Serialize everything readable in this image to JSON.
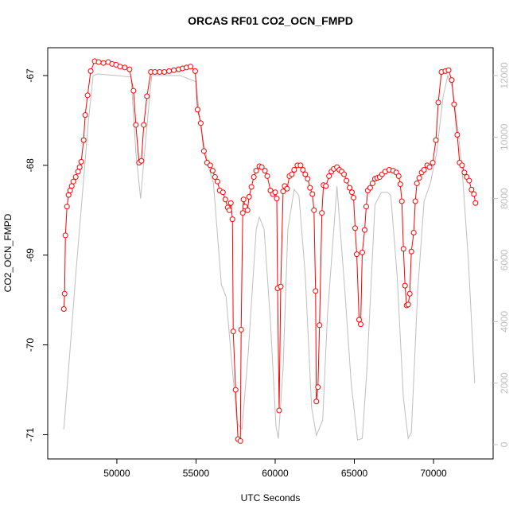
{
  "chart_data": {
    "type": "line",
    "title": "ORCAS RF01 CO2_OCN_FMPD",
    "x_label": "UTC Seconds",
    "y_label": "CO2_OCN_FMPD",
    "xlim": [
      45633,
      73765
    ],
    "ylim": [
      -71.27,
      -66.69
    ],
    "y2lim": [
      -465,
      12904
    ],
    "xticks": [
      50000,
      55000,
      60000,
      65000,
      70000
    ],
    "yticks": [
      -71,
      -70,
      -69,
      -68,
      -67
    ],
    "y2ticks": [
      0,
      2000,
      4000,
      6000,
      8000,
      10000,
      12000
    ],
    "series": [
      {
        "color": "#ff0000",
        "marker": "circle",
        "x": [
          46650,
          46700,
          46750,
          46850,
          46950,
          47050,
          47150,
          47250,
          47400,
          47550,
          47650,
          47750,
          47900,
          48000,
          48150,
          48350,
          48600,
          48850,
          49150,
          49450,
          49700,
          49950,
          50200,
          50500,
          50800,
          51050,
          51200,
          51400,
          51550,
          51700,
          51900,
          52150,
          52400,
          52700,
          53000,
          53300,
          53600,
          53900,
          54150,
          54400,
          54650,
          54950,
          55100,
          55300,
          55500,
          55700,
          55900,
          56050,
          56200,
          56350,
          56500,
          56700,
          56850,
          57000,
          57100,
          57200,
          57300,
          57350,
          57500,
          57650,
          57800,
          57850,
          57950,
          58000,
          58100,
          58250,
          58350,
          58500,
          58650,
          58800,
          59000,
          59150,
          59350,
          59500,
          59700,
          59850,
          60000,
          60100,
          60150,
          60250,
          60350,
          60500,
          60600,
          60750,
          60900,
          61050,
          61200,
          61400,
          61600,
          61750,
          61900,
          62050,
          62200,
          62350,
          62450,
          62550,
          62600,
          62700,
          62800,
          62950,
          63050,
          63200,
          63400,
          63550,
          63700,
          63900,
          64050,
          64200,
          64350,
          64500,
          64700,
          64850,
          64950,
          65050,
          65150,
          65300,
          65400,
          65500,
          65650,
          65750,
          65850,
          66000,
          66150,
          66300,
          66450,
          66600,
          66750,
          66950,
          67200,
          67450,
          67650,
          67800,
          67900,
          68000,
          68100,
          68200,
          68300,
          68400,
          68500,
          68600,
          68750,
          68850,
          68950,
          69100,
          69250,
          69400,
          69600,
          69750,
          69950,
          70150,
          70300,
          70500,
          70750,
          70950,
          71150,
          71300,
          71500,
          71650,
          71800,
          71950,
          72100,
          72250,
          72400,
          72550,
          72650
        ],
        "values": [
          -69.6,
          -69.43,
          -68.78,
          -68.46,
          -68.33,
          -68.28,
          -68.23,
          -68.18,
          -68.13,
          -68.07,
          -68.02,
          -67.96,
          -67.72,
          -67.44,
          -67.22,
          -66.95,
          -66.84,
          -66.85,
          -66.86,
          -66.85,
          -66.87,
          -66.88,
          -66.9,
          -66.91,
          -66.93,
          -67.17,
          -67.55,
          -67.97,
          -67.95,
          -67.55,
          -67.23,
          -66.96,
          -66.96,
          -66.96,
          -66.96,
          -66.95,
          -66.94,
          -66.93,
          -66.92,
          -66.91,
          -66.9,
          -66.95,
          -67.38,
          -67.53,
          -67.84,
          -67.97,
          -68.0,
          -68.06,
          -68.13,
          -68.18,
          -68.28,
          -68.3,
          -68.38,
          -68.47,
          -68.5,
          -68.42,
          -68.6,
          -69.85,
          -70.5,
          -71.05,
          -71.07,
          -69.83,
          -68.53,
          -68.38,
          -68.46,
          -68.5,
          -68.35,
          -68.24,
          -68.13,
          -68.06,
          -68.01,
          -68.02,
          -68.06,
          -68.12,
          -68.28,
          -68.32,
          -68.3,
          -68.37,
          -69.37,
          -70.73,
          -69.35,
          -68.29,
          -68.23,
          -68.26,
          -68.12,
          -68.1,
          -68.05,
          -68.0,
          -68.0,
          -68.05,
          -68.1,
          -68.15,
          -68.25,
          -68.32,
          -68.5,
          -69.4,
          -70.63,
          -70.47,
          -69.78,
          -68.53,
          -68.22,
          -68.23,
          -68.12,
          -68.07,
          -68.04,
          -68.02,
          -68.05,
          -68.07,
          -68.1,
          -68.17,
          -68.25,
          -68.3,
          -68.36,
          -68.7,
          -68.99,
          -69.72,
          -69.77,
          -68.97,
          -68.72,
          -68.46,
          -68.28,
          -68.25,
          -68.2,
          -68.15,
          -68.14,
          -68.13,
          -68.1,
          -68.07,
          -68.05,
          -68.06,
          -68.08,
          -68.12,
          -68.21,
          -68.4,
          -68.93,
          -69.34,
          -69.56,
          -69.55,
          -69.43,
          -68.96,
          -68.75,
          -68.4,
          -68.2,
          -68.14,
          -68.08,
          -68.05,
          -68.0,
          -68.02,
          -67.97,
          -67.72,
          -67.3,
          -66.96,
          -66.95,
          -66.94,
          -67.05,
          -67.32,
          -67.66,
          -67.97,
          -68.0,
          -68.08,
          -68.13,
          -68.17,
          -68.27,
          -68.32,
          -68.42
        ]
      },
      {
        "color": "#bebebe",
        "axis": "y2",
        "x": [
          46650,
          47000,
          47400,
          47800,
          48200,
          48500,
          48800,
          50000,
          50900,
          51200,
          51500,
          51800,
          52200,
          53000,
          54000,
          55000,
          55300,
          55800,
          56100,
          56600,
          56900,
          57200,
          57600,
          57900,
          58300,
          58800,
          59000,
          59300,
          59700,
          60050,
          60200,
          60500,
          60800,
          61200,
          61500,
          61900,
          62300,
          62600,
          63000,
          63300,
          63900,
          64400,
          64800,
          65200,
          65500,
          65800,
          66300,
          66700,
          67100,
          67300,
          67700,
          68100,
          68400,
          68600,
          69000,
          69400,
          69800,
          70200,
          70600,
          70900,
          71200,
          71500,
          71800,
          72200,
          72600
        ],
        "values": [
          500,
          2800,
          5500,
          8000,
          10500,
          12000,
          12050,
          12000,
          11950,
          9500,
          8000,
          9800,
          12000,
          12000,
          12000,
          11800,
          10300,
          9000,
          8500,
          5200,
          4800,
          3000,
          700,
          500,
          3000,
          7000,
          7400,
          7000,
          4000,
          600,
          200,
          2500,
          7000,
          8300,
          8100,
          5500,
          1200,
          300,
          800,
          4200,
          8400,
          5000,
          2000,
          150,
          200,
          2500,
          7800,
          8200,
          8200,
          8100,
          5500,
          1500,
          200,
          400,
          5000,
          7900,
          8500,
          9500,
          11300,
          12000,
          11600,
          10400,
          9000,
          6000,
          2000
        ]
      }
    ]
  }
}
